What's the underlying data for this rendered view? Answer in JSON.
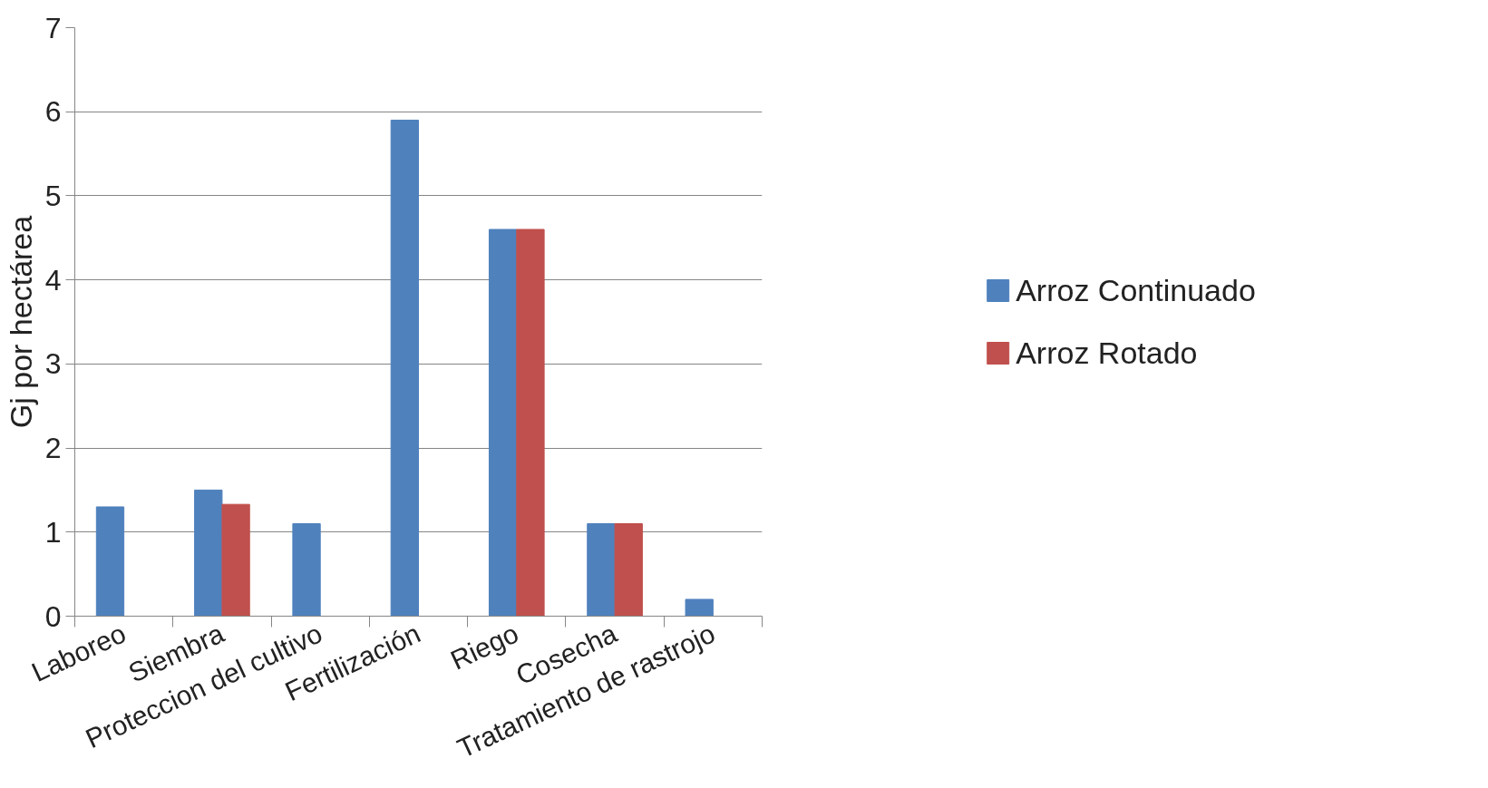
{
  "chart_data": {
    "type": "bar",
    "ylabel": "Gj por hectárea",
    "categories": [
      "Laboreo",
      "Siembra",
      "Proteccion del cultivo",
      "Fertilización",
      "Riego",
      "Cosecha",
      "Tratamiento de rastrojo"
    ],
    "series": [
      {
        "name": "Arroz Continuado",
        "color": "#4f81bd",
        "values": [
          1.3,
          1.5,
          1.1,
          5.9,
          4.6,
          1.1,
          0.2
        ]
      },
      {
        "name": "Arroz Rotado",
        "color": "#c0504d",
        "values": [
          null,
          1.33,
          null,
          null,
          4.6,
          1.1,
          null
        ]
      }
    ],
    "ylim": [
      0,
      7
    ],
    "yticks": [
      0,
      1,
      2,
      3,
      4,
      5,
      6,
      7
    ],
    "grid": "y",
    "legend": "right"
  }
}
